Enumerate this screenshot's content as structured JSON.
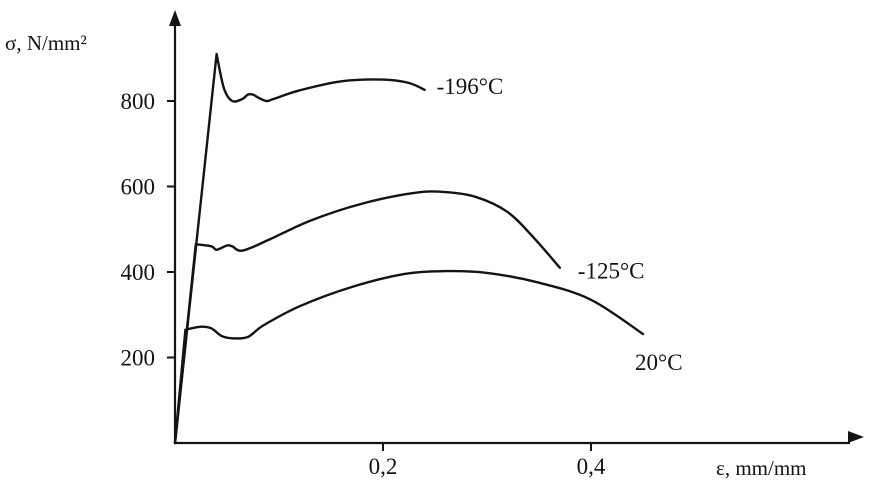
{
  "chart_data": {
    "type": "line",
    "xlabel": "ε, mm/mm",
    "ylabel": "σ, N/mm²",
    "xlim": [
      0,
      0.5
    ],
    "ylim": [
      0,
      950
    ],
    "x_ticks": [
      {
        "value": 0.2,
        "label": "0,2"
      },
      {
        "value": 0.4,
        "label": "0,4"
      }
    ],
    "y_ticks": [
      {
        "value": 200,
        "label": "200"
      },
      {
        "value": 400,
        "label": "400"
      },
      {
        "value": 600,
        "label": "600"
      },
      {
        "value": 800,
        "label": "800"
      }
    ],
    "grid": false,
    "legend": "inline labels at curve ends",
    "series": [
      {
        "name": "-196°C",
        "x": [
          0,
          0.04,
          0.047,
          0.055,
          0.065,
          0.07,
          0.075,
          0.08,
          0.088,
          0.095,
          0.12,
          0.16,
          0.2,
          0.225,
          0.24
        ],
        "y": [
          0,
          910,
          830,
          800,
          805,
          815,
          815,
          808,
          800,
          805,
          825,
          846,
          850,
          842,
          826
        ]
      },
      {
        "name": "-125°C",
        "x": [
          0,
          0.02,
          0.035,
          0.04,
          0.05,
          0.055,
          0.065,
          0.09,
          0.13,
          0.18,
          0.23,
          0.26,
          0.29,
          0.32,
          0.345,
          0.37
        ],
        "y": [
          0,
          465,
          460,
          452,
          462,
          460,
          450,
          475,
          520,
          560,
          585,
          587,
          575,
          540,
          480,
          410
        ]
      },
      {
        "name": "20°C",
        "x": [
          0,
          0.01,
          0.025,
          0.035,
          0.045,
          0.055,
          0.07,
          0.085,
          0.12,
          0.17,
          0.22,
          0.26,
          0.3,
          0.35,
          0.4,
          0.45
        ],
        "y": [
          0,
          265,
          272,
          268,
          250,
          245,
          248,
          275,
          320,
          365,
          395,
          402,
          398,
          375,
          335,
          255
        ]
      }
    ]
  }
}
